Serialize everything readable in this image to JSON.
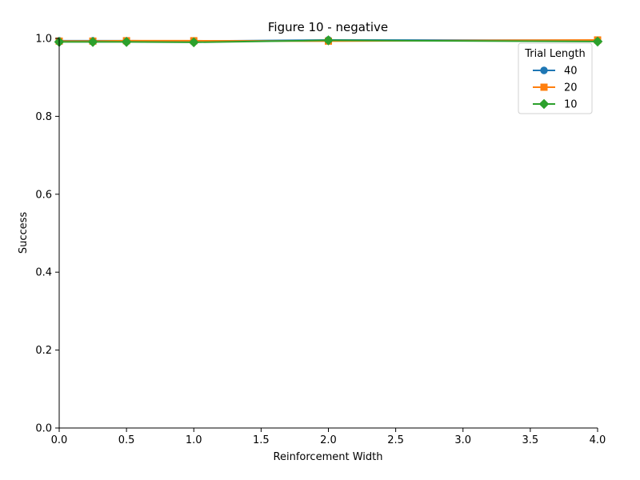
{
  "chart_data": {
    "type": "line",
    "title": "Figure 10 - negative",
    "xlabel": "Reinforcement Width",
    "ylabel": "Success",
    "xlim": [
      0,
      4
    ],
    "ylim": [
      0,
      1
    ],
    "x_ticks": [
      "0.0",
      "0.5",
      "1.0",
      "1.5",
      "2.0",
      "2.5",
      "3.0",
      "3.5",
      "4.0"
    ],
    "y_ticks": [
      "0.0",
      "0.2",
      "0.4",
      "0.6",
      "0.8",
      "1.0"
    ],
    "grid": false,
    "legend": {
      "title": "Trial Length",
      "placement": "top-right"
    },
    "x": [
      0,
      0.25,
      0.5,
      1,
      2,
      4
    ],
    "series": [
      {
        "name": "40",
        "color": "#1f77b4",
        "marker": "circle",
        "values": [
          0.994,
          0.994,
          0.994,
          0.993,
          0.996,
          0.995
        ]
      },
      {
        "name": "20",
        "color": "#ff7f0e",
        "marker": "square",
        "values": [
          0.993,
          0.993,
          0.994,
          0.994,
          0.993,
          0.996
        ]
      },
      {
        "name": "10",
        "color": "#2ca02c",
        "marker": "diamond",
        "values": [
          0.991,
          0.991,
          0.991,
          0.99,
          0.995,
          0.992
        ]
      }
    ]
  }
}
